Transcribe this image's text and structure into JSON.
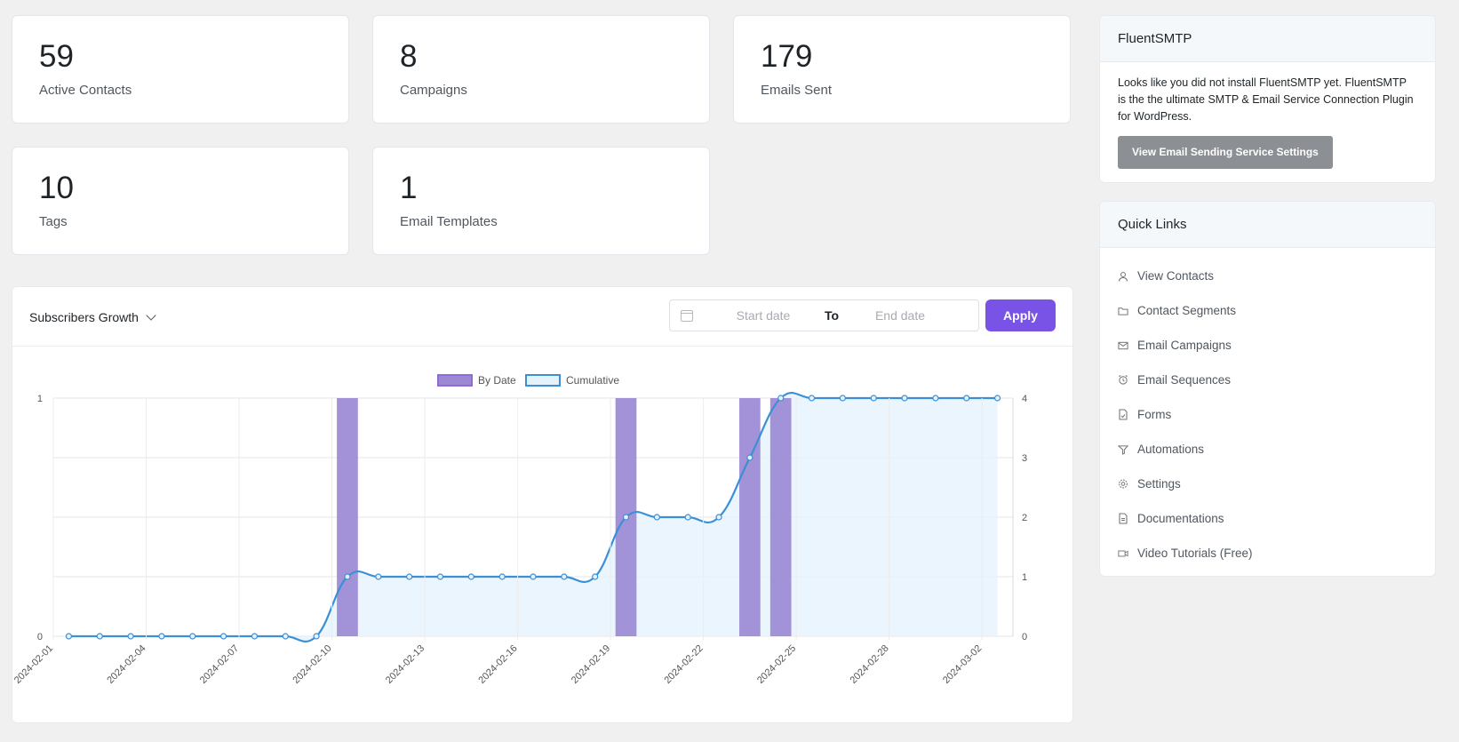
{
  "stats": [
    {
      "value": "59",
      "label": "Active Contacts"
    },
    {
      "value": "8",
      "label": "Campaigns"
    },
    {
      "value": "179",
      "label": "Emails Sent"
    },
    {
      "value": "10",
      "label": "Tags"
    },
    {
      "value": "1",
      "label": "Email Templates"
    }
  ],
  "chart_panel": {
    "title": "Subscribers Growth",
    "start_placeholder": "Start date",
    "to_label": "To",
    "end_placeholder": "End date",
    "apply_label": "Apply"
  },
  "smtp": {
    "title": "FluentSMTP",
    "body": "Looks like you did not install FluentSMTP yet. FluentSMTP is the the ultimate SMTP & Email Service Connection Plugin for WordPress.",
    "button": "View Email Sending Service Settings"
  },
  "quick_links": {
    "title": "Quick Links",
    "items": [
      {
        "label": "View Contacts",
        "icon": "user-icon"
      },
      {
        "label": "Contact Segments",
        "icon": "folder-icon"
      },
      {
        "label": "Email Campaigns",
        "icon": "envelope-icon"
      },
      {
        "label": "Email Sequences",
        "icon": "alarm-clock-icon"
      },
      {
        "label": "Forms",
        "icon": "form-document-icon"
      },
      {
        "label": "Automations",
        "icon": "funnel-icon"
      },
      {
        "label": "Settings",
        "icon": "gear-icon"
      },
      {
        "label": "Documentations",
        "icon": "document-icon"
      },
      {
        "label": "Video Tutorials (Free)",
        "icon": "video-icon"
      }
    ]
  },
  "colors": {
    "accent": "#7952e6",
    "bar": "#9b89d4",
    "line": "#3b8fd6",
    "area": "#e5f2fc"
  },
  "chart_data": {
    "type": "bar",
    "x": [
      "2024-02-01",
      "2024-02-02",
      "2024-02-03",
      "2024-02-04",
      "2024-02-05",
      "2024-02-06",
      "2024-02-07",
      "2024-02-08",
      "2024-02-09",
      "2024-02-10",
      "2024-02-11",
      "2024-02-12",
      "2024-02-13",
      "2024-02-14",
      "2024-02-15",
      "2024-02-16",
      "2024-02-17",
      "2024-02-18",
      "2024-02-19",
      "2024-02-20",
      "2024-02-21",
      "2024-02-22",
      "2024-02-23",
      "2024-02-24",
      "2024-02-25",
      "2024-02-26",
      "2024-02-27",
      "2024-02-28",
      "2024-02-29",
      "2024-03-01",
      "2024-03-02"
    ],
    "x_tick_labels": [
      "2024-02-01",
      "2024-02-04",
      "2024-02-07",
      "2024-02-10",
      "2024-02-13",
      "2024-02-16",
      "2024-02-19",
      "2024-02-22",
      "2024-02-25",
      "2024-02-28",
      "2024-03-02"
    ],
    "series": [
      {
        "name": "By Date",
        "type": "bar",
        "axis": "left",
        "values": [
          0,
          0,
          0,
          0,
          0,
          0,
          0,
          0,
          0,
          1,
          0,
          0,
          0,
          0,
          0,
          0,
          0,
          0,
          1,
          0,
          0,
          0,
          1,
          1,
          0,
          0,
          0,
          0,
          0,
          0,
          0
        ]
      },
      {
        "name": "Cumulative",
        "type": "line",
        "axis": "right",
        "values": [
          0,
          0,
          0,
          0,
          0,
          0,
          0,
          0,
          0,
          1,
          1,
          1,
          1,
          1,
          1,
          1,
          1,
          1,
          2,
          2,
          2,
          2,
          3,
          4,
          4,
          4,
          4,
          4,
          4,
          4,
          4
        ]
      }
    ],
    "left_ticks": [
      "0",
      "1"
    ],
    "right_ticks": [
      "0",
      "1",
      "2",
      "3",
      "4"
    ],
    "ylim_left": [
      0,
      1
    ],
    "ylim_right": [
      0,
      4
    ],
    "legend_position": "top-center",
    "grid": true
  }
}
